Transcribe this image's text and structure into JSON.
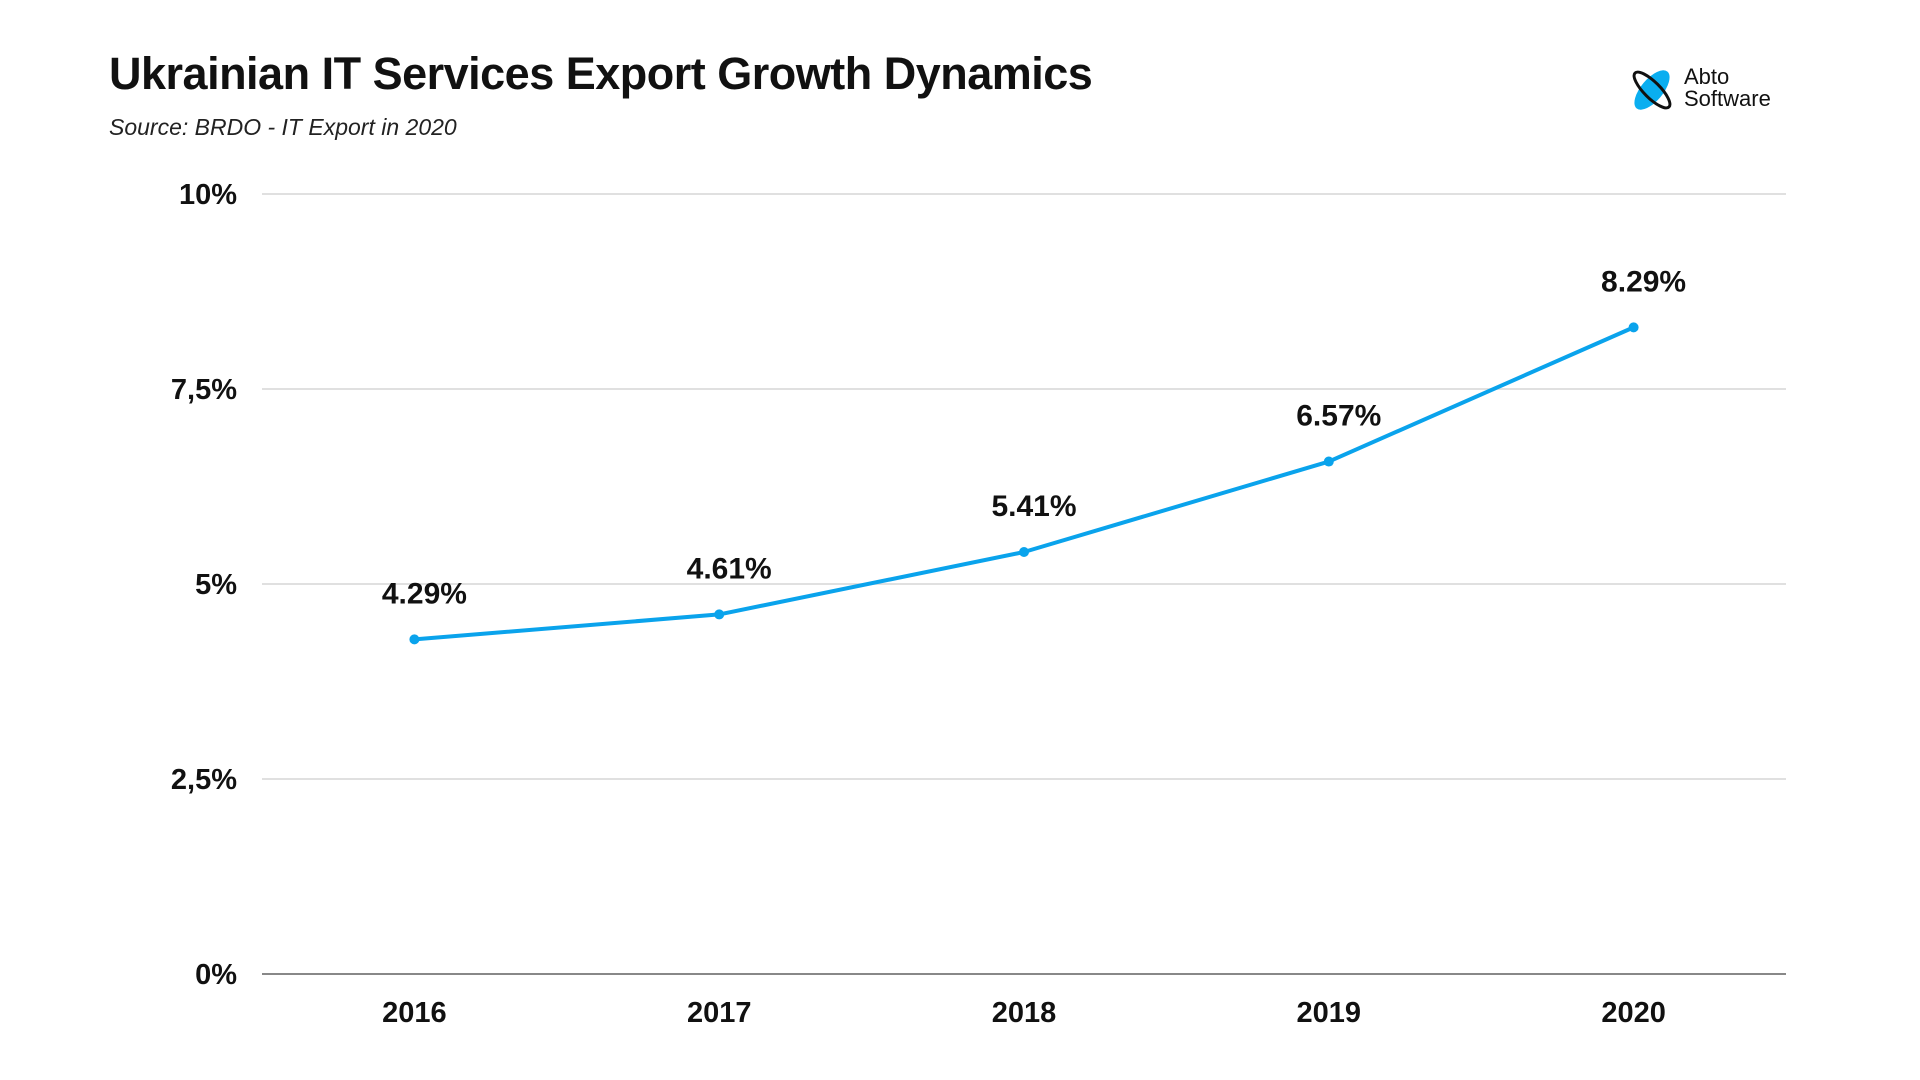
{
  "header": {
    "title": "Ukrainian IT Services Export Growth Dynamics",
    "subtitle": "Source: BRDO - IT Export in 2020"
  },
  "logo": {
    "line1": "Abto",
    "line2": "Software",
    "accent": "#0aaef0"
  },
  "chart_data": {
    "type": "line",
    "title": "Ukrainian IT Services Export Growth Dynamics",
    "categories": [
      "2016",
      "2017",
      "2018",
      "2019",
      "2020"
    ],
    "values": [
      4.29,
      4.61,
      5.41,
      6.57,
      8.29
    ],
    "data_labels": [
      "4.29%",
      "4.61%",
      "5.41%",
      "6.57%",
      "8.29%"
    ],
    "ylim": [
      0,
      10
    ],
    "yticks": [
      0,
      2.5,
      5,
      7.5,
      10
    ],
    "ytick_labels": [
      "0%",
      "2,5%",
      "5%",
      "7,5%",
      "10%"
    ],
    "grid": true,
    "line_color": "#0aa3ec"
  }
}
